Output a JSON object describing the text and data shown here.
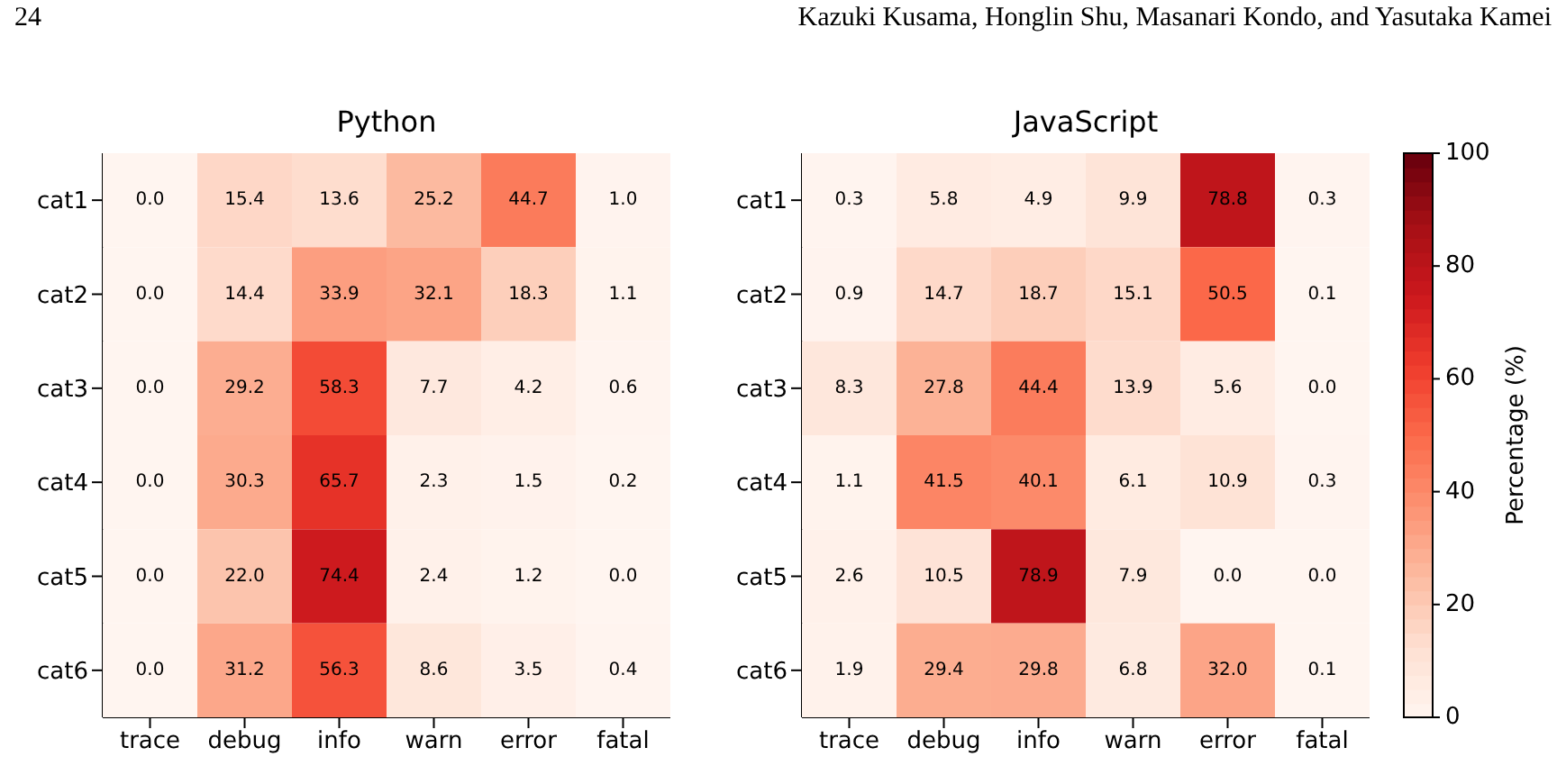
{
  "chart_data": [
    {
      "type": "heatmap",
      "title": "Python",
      "annotations": [
        "24",
        "Kazuki Kusama, Honglin Shu, Masanari Kondo, and Yasutaka Kamei"
      ],
      "categories": [
        "trace",
        "debug",
        "info",
        "warn",
        "error",
        "fatal"
      ],
      "y_categories": [
        "cat1",
        "cat2",
        "cat3",
        "cat4",
        "cat5",
        "cat6"
      ],
      "cells": [
        [
          0.0,
          15.4,
          13.6,
          25.2,
          44.7,
          1.0
        ],
        [
          0.0,
          14.4,
          33.9,
          32.1,
          18.3,
          1.1
        ],
        [
          0.0,
          29.2,
          58.3,
          7.7,
          4.2,
          0.6
        ],
        [
          0.0,
          30.3,
          65.7,
          2.3,
          1.5,
          0.2
        ],
        [
          0.0,
          22.0,
          74.4,
          2.4,
          1.2,
          0.0
        ],
        [
          0.0,
          31.2,
          56.3,
          8.6,
          3.5,
          0.4
        ]
      ],
      "cell_labels": [
        [
          "0.0",
          "15.4",
          "13.6",
          "25.2",
          "44.7",
          "1.0"
        ],
        [
          "0.0",
          "14.4",
          "33.9",
          "32.1",
          "18.3",
          "1.1"
        ],
        [
          "0.0",
          "29.2",
          "58.3",
          "7.7",
          "4.2",
          "0.6"
        ],
        [
          "0.0",
          "30.3",
          "65.7",
          "2.3",
          "1.5",
          "0.2"
        ],
        [
          "0.0",
          "22.0",
          "74.4",
          "2.4",
          "1.2",
          "0.0"
        ],
        [
          "0.0",
          "31.2",
          "56.3",
          "8.6",
          "3.5",
          "0.4"
        ]
      ]
    },
    {
      "type": "heatmap",
      "title": "JavaScript",
      "categories": [
        "trace",
        "debug",
        "info",
        "warn",
        "error",
        "fatal"
      ],
      "y_categories": [
        "cat1",
        "cat2",
        "cat3",
        "cat4",
        "cat5",
        "cat6"
      ],
      "cells": [
        [
          0.3,
          5.8,
          4.9,
          9.9,
          78.8,
          0.3
        ],
        [
          0.9,
          14.7,
          18.7,
          15.1,
          50.5,
          0.1
        ],
        [
          8.3,
          27.8,
          44.4,
          13.9,
          5.6,
          0.0
        ],
        [
          1.1,
          41.5,
          40.1,
          6.1,
          10.9,
          0.3
        ],
        [
          2.6,
          10.5,
          78.9,
          7.9,
          0.0,
          0.0
        ],
        [
          1.9,
          29.4,
          29.8,
          6.8,
          32.0,
          0.1
        ]
      ],
      "cell_labels": [
        [
          "0.3",
          "5.8",
          "4.9",
          "9.9",
          "78.8",
          "0.3"
        ],
        [
          "0.9",
          "14.7",
          "18.7",
          "15.1",
          "50.5",
          "0.1"
        ],
        [
          "8.3",
          "27.8",
          "44.4",
          "13.9",
          "5.6",
          "0.0"
        ],
        [
          "1.1",
          "41.5",
          "40.1",
          "6.1",
          "10.9",
          "0.3"
        ],
        [
          "2.6",
          "10.5",
          "78.9",
          "7.9",
          "0.0",
          "0.0"
        ],
        [
          "1.9",
          "29.4",
          "29.8",
          "6.8",
          "32.0",
          "0.1"
        ]
      ],
      "clim": [
        0,
        100
      ],
      "cticks": [
        0,
        20,
        40,
        60,
        80,
        100
      ],
      "clabel": "Percentage (%)"
    }
  ]
}
